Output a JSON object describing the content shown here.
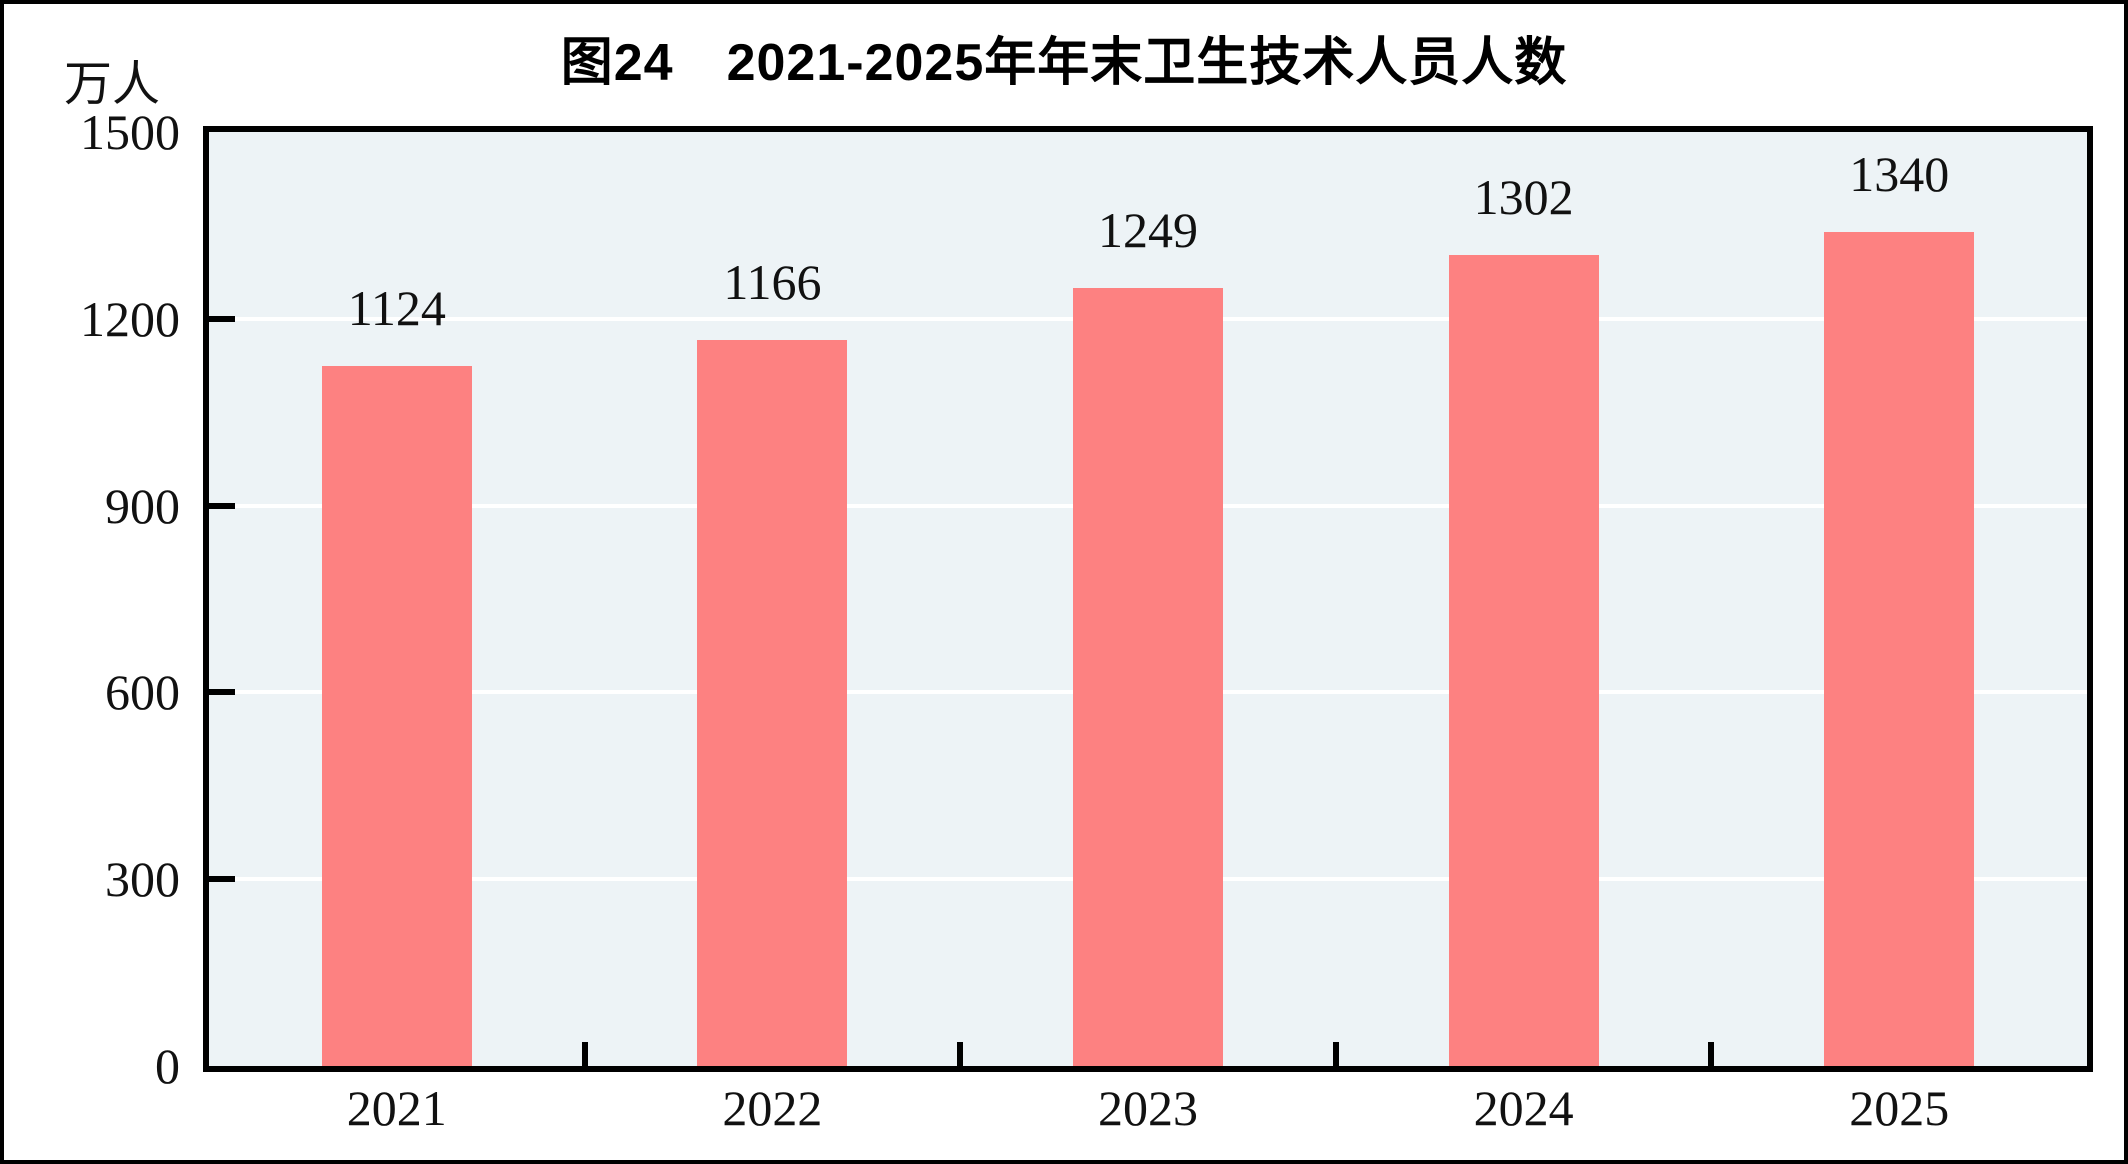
{
  "page": {
    "background_color": "#ffffff",
    "frame_color": "#000000"
  },
  "chart_data": {
    "type": "bar",
    "title": "图24　2021-2025年年末卫生技术人员人数",
    "unit_label": "万人",
    "categories": [
      "2021",
      "2022",
      "2023",
      "2024",
      "2025"
    ],
    "values": [
      1124,
      1166,
      1249,
      1302,
      1340
    ],
    "data_labels": [
      1124,
      1166,
      1249,
      1302,
      1340
    ],
    "ylim": [
      0,
      1500
    ],
    "yticks": [
      0,
      300,
      600,
      900,
      1200,
      1500
    ],
    "grid": "horizontal-white",
    "legend": "none",
    "bar_color": "#fd8181",
    "plot_bg_color": "#edf3f6",
    "axis_color": "#000000",
    "text_color": "#111111"
  }
}
